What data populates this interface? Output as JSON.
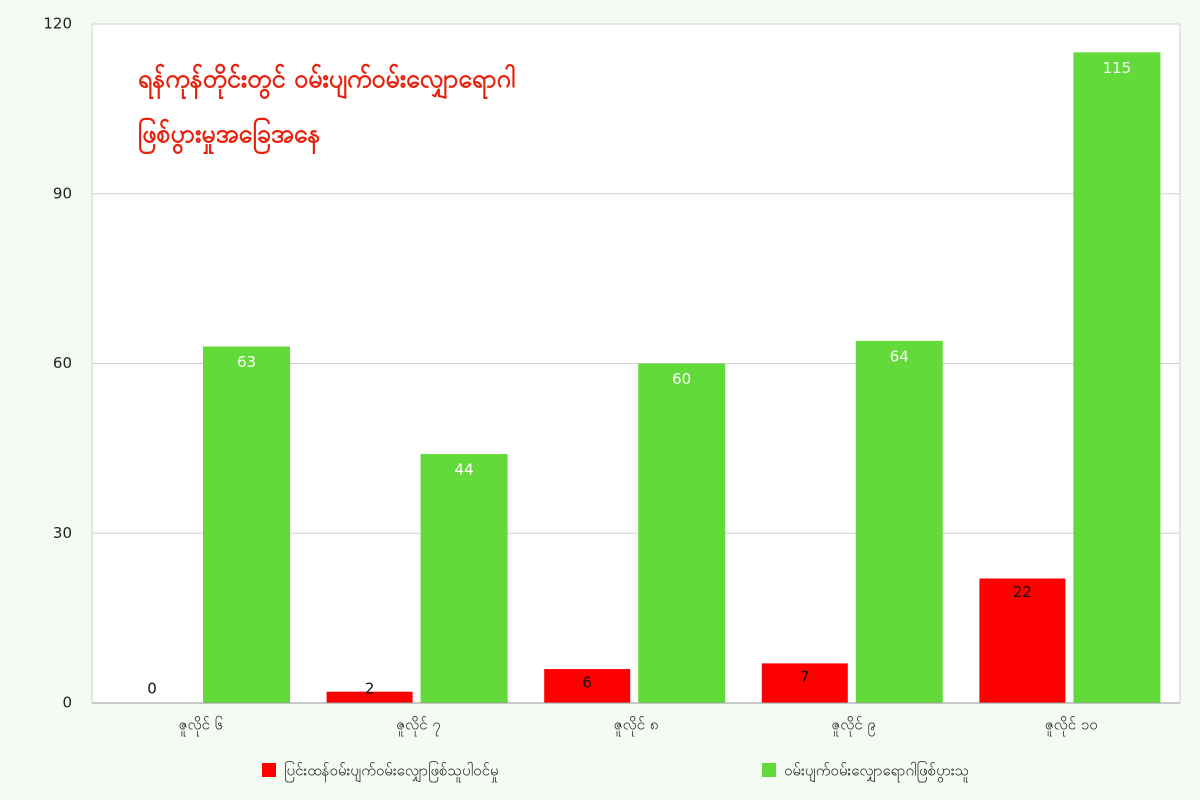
{
  "chart_data": {
    "type": "bar",
    "title": [
      "ရန်ကုန်တိုင်းတွင် ဝမ်းပျက်ဝမ်းလျှောရောဂါ",
      "ဖြစ်ပွားမှုအခြေအနေ"
    ],
    "categories": [
      "ဇူလိုင် ၆",
      "ဇူလိုင် ၇",
      "ဇူလိုင် ၈",
      "ဇူလိုင် ၉",
      "ဇူလိုင် ၁၀"
    ],
    "series": [
      {
        "name": "ပြင်းထန်ဝမ်းပျက်ဝမ်းလျှောဖြစ်သူပါဝင်မှု",
        "color": "#ff0000",
        "values": [
          0,
          2,
          6,
          7,
          22
        ]
      },
      {
        "name": "ဝမ်းပျက်ဝမ်းလျှောရောဂါဖြစ်ပွားသူ",
        "color": "#62db3a",
        "values": [
          63,
          44,
          60,
          64,
          115
        ]
      }
    ],
    "ylim": [
      0,
      120
    ],
    "yticks": [
      0,
      30,
      60,
      90,
      120
    ],
    "grid": true
  }
}
